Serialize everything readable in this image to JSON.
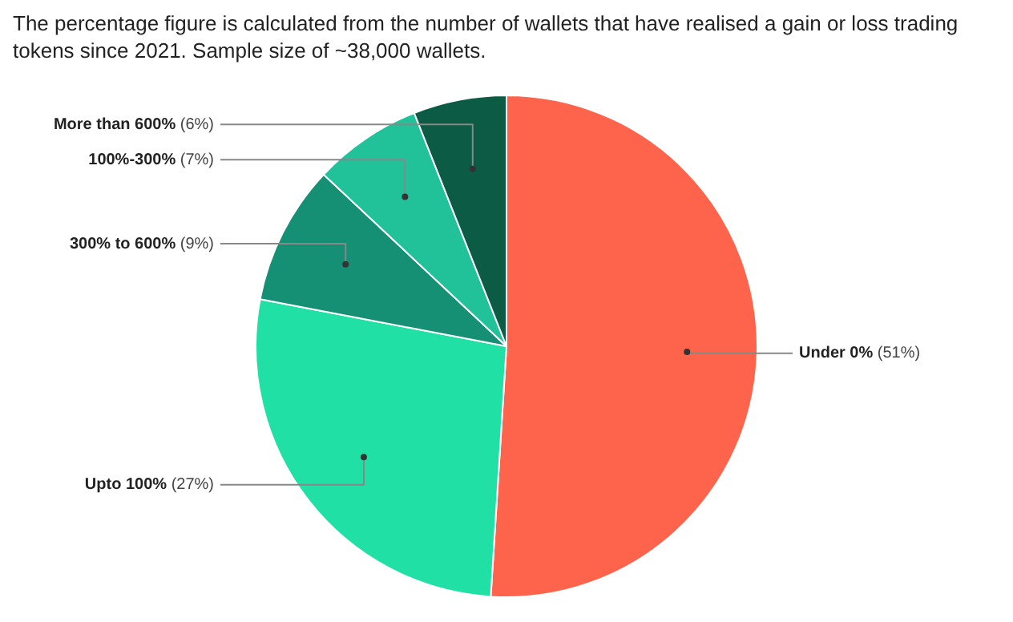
{
  "chart_data": {
    "type": "pie",
    "subtitle": "The percentage figure is calculated from the number of wallets that have realised a gain or loss trading tokens since 2021. Sample size of ~38,000 wallets.",
    "categories": [
      "Under 0%",
      "Upto 100%",
      "300% to 600%",
      "100%-300%",
      "More than 600%"
    ],
    "values": [
      51,
      27,
      9,
      7,
      6
    ],
    "value_labels": [
      "(51%)",
      "(27%)",
      "(9%)",
      "(7%)",
      "(6%)"
    ],
    "colors": [
      "#fe634b",
      "#21e0a5",
      "#169075",
      "#21c29a",
      "#0c5c45"
    ],
    "legend": false
  }
}
